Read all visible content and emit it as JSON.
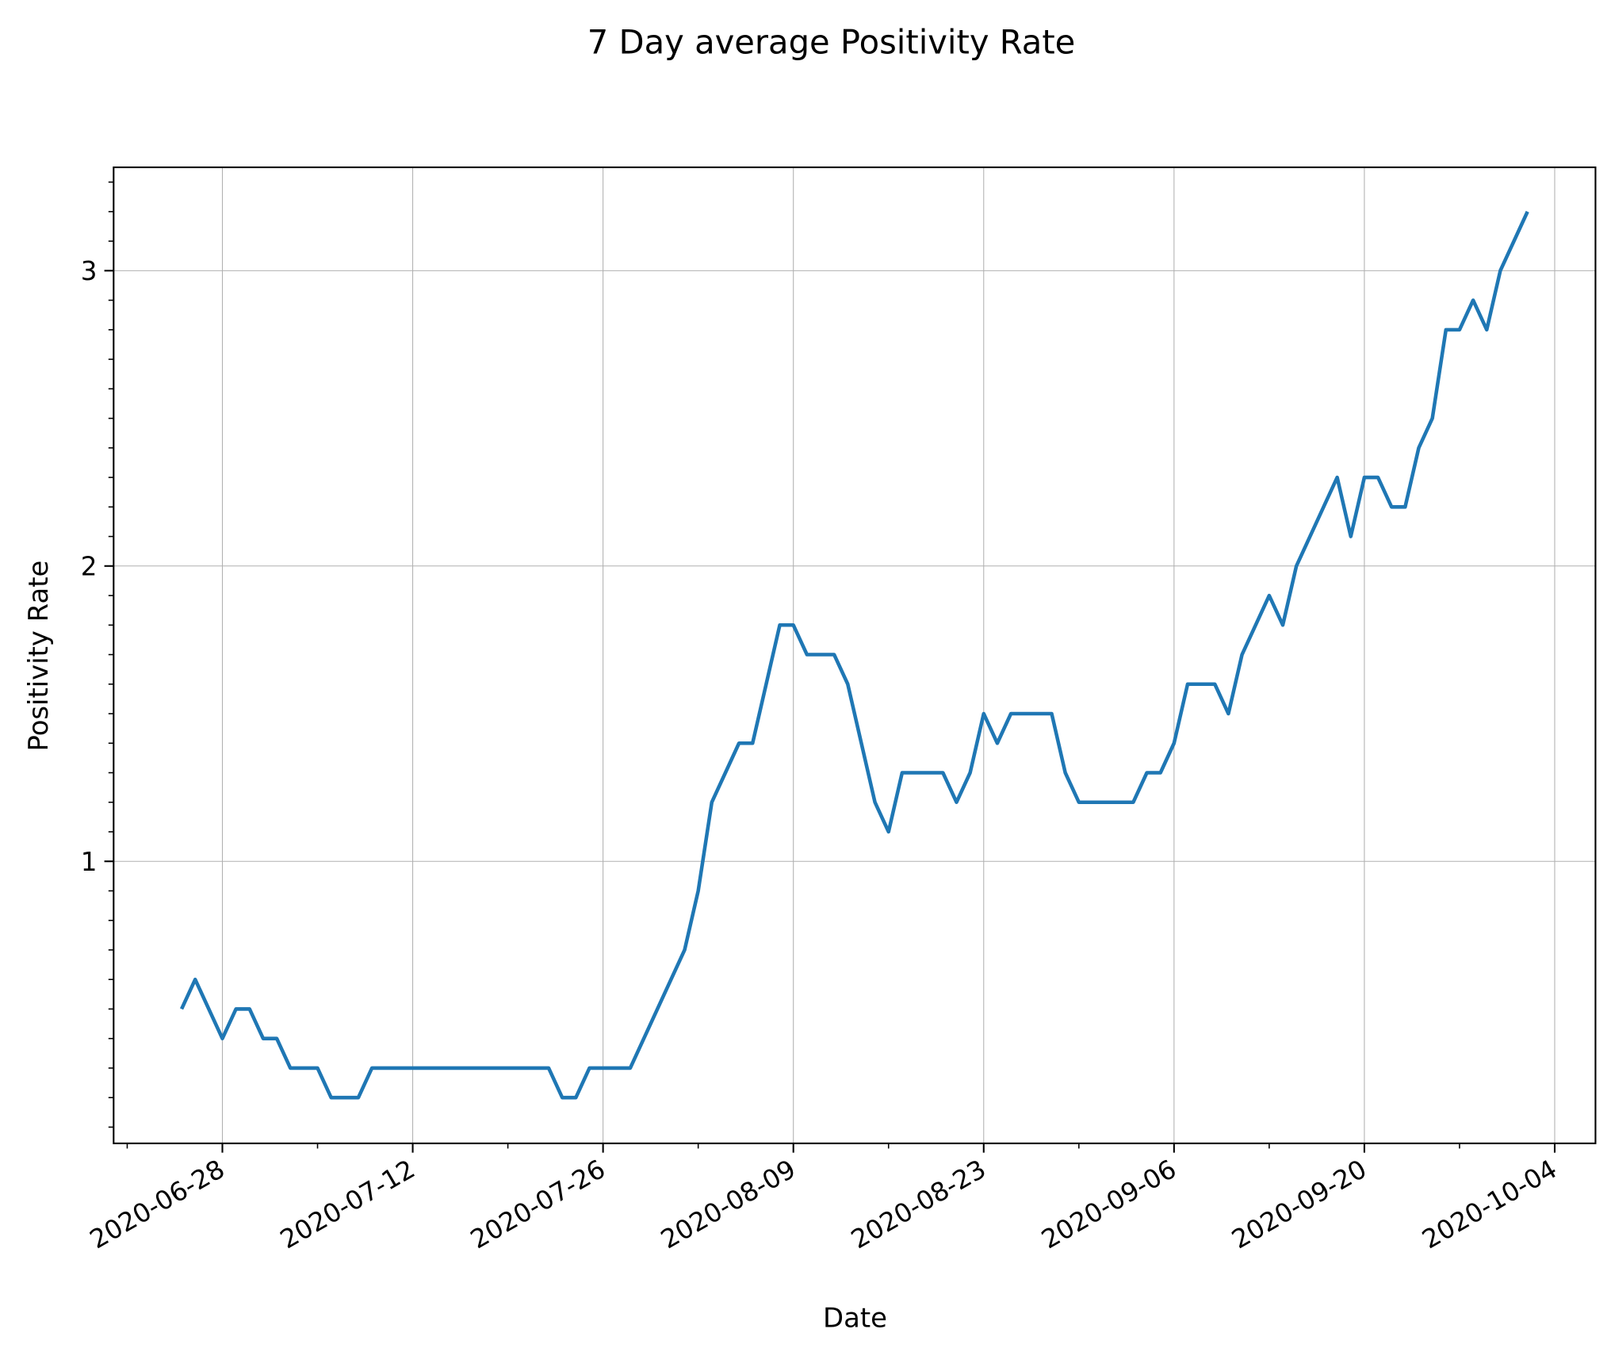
{
  "chart_data": {
    "type": "line",
    "title": "7 Day average Positivity Rate",
    "xlabel": "Date",
    "ylabel": "Positivity Rate",
    "x": [
      "2020-06-25",
      "2020-06-26",
      "2020-06-27",
      "2020-06-28",
      "2020-06-29",
      "2020-06-30",
      "2020-07-01",
      "2020-07-02",
      "2020-07-03",
      "2020-07-04",
      "2020-07-05",
      "2020-07-06",
      "2020-07-07",
      "2020-07-08",
      "2020-07-09",
      "2020-07-10",
      "2020-07-11",
      "2020-07-12",
      "2020-07-13",
      "2020-07-14",
      "2020-07-15",
      "2020-07-16",
      "2020-07-17",
      "2020-07-18",
      "2020-07-19",
      "2020-07-20",
      "2020-07-21",
      "2020-07-22",
      "2020-07-23",
      "2020-07-24",
      "2020-07-25",
      "2020-07-26",
      "2020-07-27",
      "2020-07-28",
      "2020-07-29",
      "2020-07-30",
      "2020-07-31",
      "2020-08-01",
      "2020-08-02",
      "2020-08-03",
      "2020-08-04",
      "2020-08-05",
      "2020-08-06",
      "2020-08-07",
      "2020-08-08",
      "2020-08-09",
      "2020-08-10",
      "2020-08-11",
      "2020-08-12",
      "2020-08-13",
      "2020-08-14",
      "2020-08-15",
      "2020-08-16",
      "2020-08-17",
      "2020-08-18",
      "2020-08-19",
      "2020-08-20",
      "2020-08-21",
      "2020-08-22",
      "2020-08-23",
      "2020-08-24",
      "2020-08-25",
      "2020-08-26",
      "2020-08-27",
      "2020-08-28",
      "2020-08-29",
      "2020-08-30",
      "2020-08-31",
      "2020-09-01",
      "2020-09-02",
      "2020-09-03",
      "2020-09-04",
      "2020-09-05",
      "2020-09-06",
      "2020-09-07",
      "2020-09-08",
      "2020-09-09",
      "2020-09-10",
      "2020-09-11",
      "2020-09-12",
      "2020-09-13",
      "2020-09-14",
      "2020-09-15",
      "2020-09-16",
      "2020-09-17",
      "2020-09-18",
      "2020-09-19",
      "2020-09-20",
      "2020-09-21",
      "2020-09-22",
      "2020-09-23",
      "2020-09-24",
      "2020-09-25",
      "2020-09-26",
      "2020-09-27",
      "2020-09-28",
      "2020-09-29",
      "2020-09-30",
      "2020-10-01",
      "2020-10-02"
    ],
    "series": [
      {
        "name": "Positivity Rate",
        "color": "#1f77b4",
        "values": [
          0.5,
          0.6,
          0.5,
          0.4,
          0.5,
          0.5,
          0.4,
          0.4,
          0.3,
          0.3,
          0.3,
          0.2,
          0.2,
          0.2,
          0.3,
          0.3,
          0.3,
          0.3,
          0.3,
          0.3,
          0.3,
          0.3,
          0.3,
          0.3,
          0.3,
          0.3,
          0.3,
          0.3,
          0.2,
          0.2,
          0.3,
          0.3,
          0.3,
          0.3,
          0.4,
          0.5,
          0.6,
          0.7,
          0.9,
          1.2,
          1.3,
          1.4,
          1.4,
          1.6,
          1.8,
          1.8,
          1.7,
          1.7,
          1.7,
          1.6,
          1.4,
          1.2,
          1.1,
          1.3,
          1.3,
          1.3,
          1.3,
          1.2,
          1.3,
          1.5,
          1.4,
          1.5,
          1.5,
          1.5,
          1.5,
          1.3,
          1.2,
          1.2,
          1.2,
          1.2,
          1.2,
          1.3,
          1.3,
          1.4,
          1.6,
          1.6,
          1.6,
          1.5,
          1.7,
          1.8,
          1.9,
          1.8,
          2.0,
          2.1,
          2.2,
          2.3,
          2.1,
          2.3,
          2.3,
          2.2,
          2.2,
          2.4,
          2.5,
          2.8,
          2.8,
          2.9,
          2.8,
          3.0,
          3.1,
          3.2
        ]
      }
    ],
    "xlim": [
      "2020-06-20",
      "2020-10-07"
    ],
    "xticks": [
      "2020-06-28",
      "2020-07-12",
      "2020-07-26",
      "2020-08-09",
      "2020-08-23",
      "2020-09-06",
      "2020-09-20",
      "2020-10-04"
    ],
    "xminor_ticks": [
      "2020-06-21",
      "2020-07-05",
      "2020-07-19",
      "2020-08-02",
      "2020-08-16",
      "2020-08-30",
      "2020-09-13",
      "2020-09-27"
    ],
    "ylim": [
      0.045,
      3.35
    ],
    "yticks": [
      1,
      2,
      3
    ],
    "yminor_ticks": [
      0.1,
      0.2,
      0.3,
      0.4,
      0.5,
      0.6,
      0.7,
      0.8,
      0.9,
      1.1,
      1.2,
      1.3,
      1.4,
      1.5,
      1.6,
      1.7,
      1.8,
      1.9,
      2.1,
      2.2,
      2.3,
      2.4,
      2.5,
      2.6,
      2.7,
      2.8,
      2.9,
      3.1,
      3.2,
      3.3
    ],
    "grid": true
  }
}
